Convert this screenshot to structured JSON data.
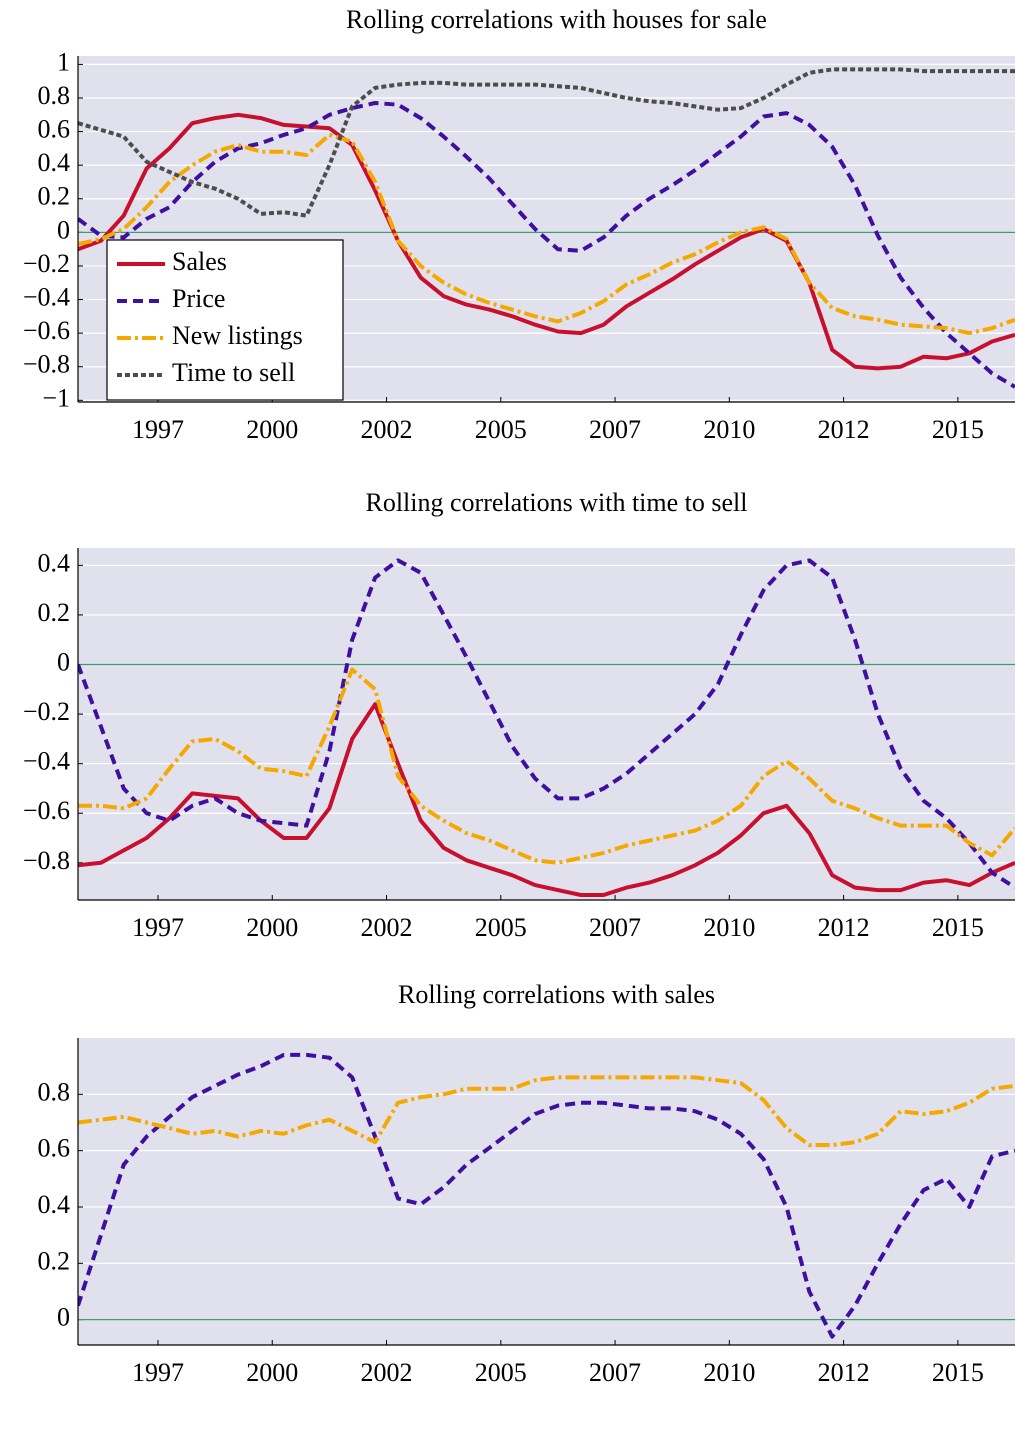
{
  "chart_data": [
    {
      "type": "line",
      "title": "Rolling correlations with houses for sale",
      "x": [
        1995.75,
        1996.25,
        1996.75,
        1997.25,
        1997.75,
        1998.25,
        1998.75,
        1999.25,
        1999.75,
        2000.25,
        2000.75,
        2001.25,
        2001.75,
        2002.25,
        2002.75,
        2003.25,
        2003.75,
        2004.25,
        2004.75,
        2005.25,
        2005.75,
        2006.25,
        2006.75,
        2007.25,
        2007.75,
        2008.25,
        2008.75,
        2009.25,
        2009.75,
        2010.25,
        2010.75,
        2011.25,
        2011.75,
        2012.25,
        2012.75,
        2013.25,
        2013.75,
        2014.25,
        2014.75,
        2015.25,
        2015.75,
        2016.25
      ],
      "xlim": [
        1995.75,
        2016.25
      ],
      "xticks": [
        {
          "value": 1997.5,
          "label": "1997"
        },
        2000,
        {
          "value": 2002.5,
          "label": "2002"
        },
        2005,
        {
          "value": 2007.5,
          "label": "2007"
        },
        2010,
        {
          "value": 2012.5,
          "label": "2012"
        },
        2015
      ],
      "ylim": [
        -1.01,
        1.05
      ],
      "yticks": [
        {
          "value": -1,
          "label": "−1"
        },
        {
          "value": -0.8,
          "label": "−0.8"
        },
        {
          "value": -0.6,
          "label": "−0.6"
        },
        {
          "value": -0.4,
          "label": "−0.4"
        },
        {
          "value": -0.2,
          "label": "−0.2"
        },
        0,
        0.2,
        0.4,
        0.6,
        0.8,
        1
      ],
      "grid": true,
      "zero_line": "#3f9a6e",
      "legend": "lower left",
      "series": [
        {
          "name": "Sales",
          "color": "#c8102e",
          "dash": "solid",
          "values": [
            -0.1,
            -0.05,
            0.1,
            0.38,
            0.5,
            0.65,
            0.68,
            0.7,
            0.68,
            0.64,
            0.63,
            0.62,
            0.52,
            0.25,
            -0.05,
            -0.27,
            -0.38,
            -0.43,
            -0.46,
            -0.5,
            -0.55,
            -0.59,
            -0.6,
            -0.55,
            -0.44,
            -0.36,
            -0.28,
            -0.19,
            -0.11,
            -0.03,
            0.02,
            -0.05,
            -0.3,
            -0.7,
            -0.8,
            -0.81,
            -0.8,
            -0.74,
            -0.75,
            -0.72,
            -0.65,
            -0.61
          ]
        },
        {
          "name": "Price",
          "color": "#3f10a0",
          "dash": "dashed",
          "values": [
            0.08,
            -0.02,
            -0.03,
            0.08,
            0.15,
            0.3,
            0.42,
            0.5,
            0.53,
            0.58,
            0.62,
            0.7,
            0.74,
            0.77,
            0.76,
            0.68,
            0.57,
            0.45,
            0.32,
            0.17,
            0.02,
            -0.1,
            -0.11,
            -0.03,
            0.1,
            0.2,
            0.28,
            0.37,
            0.47,
            0.57,
            0.69,
            0.71,
            0.64,
            0.51,
            0.28,
            -0.02,
            -0.27,
            -0.45,
            -0.6,
            -0.72,
            -0.84,
            -0.92
          ]
        },
        {
          "name": "New listings",
          "color": "#f5a800",
          "dash": "dashdot",
          "values": [
            -0.07,
            -0.04,
            0.02,
            0.15,
            0.3,
            0.4,
            0.48,
            0.52,
            0.48,
            0.48,
            0.46,
            0.58,
            0.54,
            0.3,
            -0.05,
            -0.2,
            -0.3,
            -0.37,
            -0.42,
            -0.46,
            -0.5,
            -0.53,
            -0.48,
            -0.41,
            -0.31,
            -0.25,
            -0.18,
            -0.13,
            -0.06,
            0,
            0.03,
            -0.04,
            -0.3,
            -0.45,
            -0.5,
            -0.52,
            -0.55,
            -0.56,
            -0.57,
            -0.6,
            -0.57,
            -0.52
          ]
        },
        {
          "name": "Time to sell",
          "color": "#4d4d4d",
          "dash": "dotted",
          "values": [
            0.65,
            0.61,
            0.57,
            0.42,
            0.36,
            0.3,
            0.26,
            0.2,
            0.11,
            0.12,
            0.1,
            0.4,
            0.75,
            0.86,
            0.88,
            0.89,
            0.89,
            0.88,
            0.88,
            0.88,
            0.88,
            0.87,
            0.86,
            0.83,
            0.8,
            0.78,
            0.77,
            0.75,
            0.73,
            0.74,
            0.8,
            0.88,
            0.95,
            0.97,
            0.97,
            0.97,
            0.97,
            0.96,
            0.96,
            0.96,
            0.96,
            0.96
          ]
        }
      ]
    },
    {
      "type": "line",
      "title": "Rolling correlations with time to sell",
      "x": [
        1995.75,
        1996.25,
        1996.75,
        1997.25,
        1997.75,
        1998.25,
        1998.75,
        1999.25,
        1999.75,
        2000.25,
        2000.75,
        2001.25,
        2001.75,
        2002.25,
        2002.75,
        2003.25,
        2003.75,
        2004.25,
        2004.75,
        2005.25,
        2005.75,
        2006.25,
        2006.75,
        2007.25,
        2007.75,
        2008.25,
        2008.75,
        2009.25,
        2009.75,
        2010.25,
        2010.75,
        2011.25,
        2011.75,
        2012.25,
        2012.75,
        2013.25,
        2013.75,
        2014.25,
        2014.75,
        2015.25,
        2015.75,
        2016.25
      ],
      "xlim": [
        1995.75,
        2016.25
      ],
      "xticks": [
        {
          "value": 1997.5,
          "label": "1997"
        },
        2000,
        {
          "value": 2002.5,
          "label": "2002"
        },
        2005,
        {
          "value": 2007.5,
          "label": "2007"
        },
        2010,
        {
          "value": 2012.5,
          "label": "2012"
        },
        2015
      ],
      "ylim": [
        -0.95,
        0.47
      ],
      "yticks": [
        {
          "value": -0.8,
          "label": "−0.8"
        },
        {
          "value": -0.6,
          "label": "−0.6"
        },
        {
          "value": -0.4,
          "label": "−0.4"
        },
        {
          "value": -0.2,
          "label": "−0.2"
        },
        0,
        0.2,
        0.4
      ],
      "grid": true,
      "zero_line": "#3f9a6e",
      "series": [
        {
          "color": "#c8102e",
          "dash": "solid",
          "values": [
            -0.81,
            -0.8,
            -0.75,
            -0.7,
            -0.62,
            -0.52,
            -0.53,
            -0.54,
            -0.63,
            -0.7,
            -0.7,
            -0.58,
            -0.3,
            -0.16,
            -0.4,
            -0.63,
            -0.74,
            -0.79,
            -0.82,
            -0.85,
            -0.89,
            -0.91,
            -0.93,
            -0.93,
            -0.9,
            -0.88,
            -0.85,
            -0.81,
            -0.76,
            -0.69,
            -0.6,
            -0.57,
            -0.68,
            -0.85,
            -0.9,
            -0.91,
            -0.91,
            -0.88,
            -0.87,
            -0.89,
            -0.84,
            -0.8
          ]
        },
        {
          "color": "#3f10a0",
          "dash": "dashed",
          "values": [
            0,
            -0.25,
            -0.5,
            -0.6,
            -0.63,
            -0.57,
            -0.54,
            -0.6,
            -0.63,
            -0.64,
            -0.65,
            -0.35,
            0.1,
            0.35,
            0.42,
            0.37,
            0.2,
            0.03,
            -0.15,
            -0.33,
            -0.46,
            -0.54,
            -0.54,
            -0.5,
            -0.44,
            -0.36,
            -0.28,
            -0.2,
            -0.08,
            0.12,
            0.3,
            0.4,
            0.42,
            0.35,
            0.1,
            -0.2,
            -0.42,
            -0.55,
            -0.62,
            -0.72,
            -0.84,
            -0.9
          ]
        },
        {
          "color": "#f5a800",
          "dash": "dashdot",
          "values": [
            -0.57,
            -0.57,
            -0.58,
            -0.54,
            -0.42,
            -0.31,
            -0.3,
            -0.35,
            -0.42,
            -0.43,
            -0.45,
            -0.25,
            -0.02,
            -0.1,
            -0.45,
            -0.57,
            -0.63,
            -0.68,
            -0.71,
            -0.75,
            -0.79,
            -0.8,
            -0.78,
            -0.76,
            -0.73,
            -0.71,
            -0.69,
            -0.67,
            -0.63,
            -0.57,
            -0.45,
            -0.39,
            -0.46,
            -0.55,
            -0.58,
            -0.62,
            -0.65,
            -0.65,
            -0.65,
            -0.72,
            -0.77,
            -0.66
          ]
        }
      ]
    },
    {
      "type": "line",
      "title": "Rolling correlations with sales",
      "x": [
        1995.75,
        1996.25,
        1996.75,
        1997.25,
        1997.75,
        1998.25,
        1998.75,
        1999.25,
        1999.75,
        2000.25,
        2000.75,
        2001.25,
        2001.75,
        2002.25,
        2002.75,
        2003.25,
        2003.75,
        2004.25,
        2004.75,
        2005.25,
        2005.75,
        2006.25,
        2006.75,
        2007.25,
        2007.75,
        2008.25,
        2008.75,
        2009.25,
        2009.75,
        2010.25,
        2010.75,
        2011.25,
        2011.75,
        2012.25,
        2012.75,
        2013.25,
        2013.75,
        2014.25,
        2014.75,
        2015.25,
        2015.75,
        2016.25
      ],
      "xlim": [
        1995.75,
        2016.25
      ],
      "xticks": [
        {
          "value": 1997.5,
          "label": "1997"
        },
        2000,
        {
          "value": 2002.5,
          "label": "2002"
        },
        2005,
        {
          "value": 2007.5,
          "label": "2007"
        },
        2010,
        {
          "value": 2012.5,
          "label": "2012"
        },
        2015
      ],
      "ylim": [
        -0.09,
        1
      ],
      "yticks": [
        0,
        0.2,
        0.4,
        0.6,
        0.8
      ],
      "grid": true,
      "zero_line": "#3f9a6e",
      "series": [
        {
          "color": "#3f10a0",
          "dash": "dashed",
          "values": [
            0.05,
            0.3,
            0.55,
            0.65,
            0.72,
            0.79,
            0.83,
            0.87,
            0.9,
            0.94,
            0.94,
            0.93,
            0.86,
            0.65,
            0.43,
            0.41,
            0.47,
            0.55,
            0.61,
            0.67,
            0.73,
            0.76,
            0.77,
            0.77,
            0.76,
            0.75,
            0.75,
            0.74,
            0.71,
            0.66,
            0.57,
            0.4,
            0.1,
            -0.06,
            0.05,
            0.2,
            0.34,
            0.46,
            0.5,
            0.4,
            0.58,
            0.6
          ]
        },
        {
          "color": "#f5a800",
          "dash": "dashdot",
          "values": [
            0.7,
            0.71,
            0.72,
            0.7,
            0.68,
            0.66,
            0.67,
            0.65,
            0.67,
            0.66,
            0.69,
            0.71,
            0.67,
            0.63,
            0.77,
            0.79,
            0.8,
            0.82,
            0.82,
            0.82,
            0.85,
            0.86,
            0.86,
            0.86,
            0.86,
            0.86,
            0.86,
            0.86,
            0.85,
            0.84,
            0.78,
            0.68,
            0.62,
            0.62,
            0.63,
            0.66,
            0.74,
            0.73,
            0.74,
            0.77,
            0.82,
            0.83
          ]
        }
      ]
    }
  ]
}
